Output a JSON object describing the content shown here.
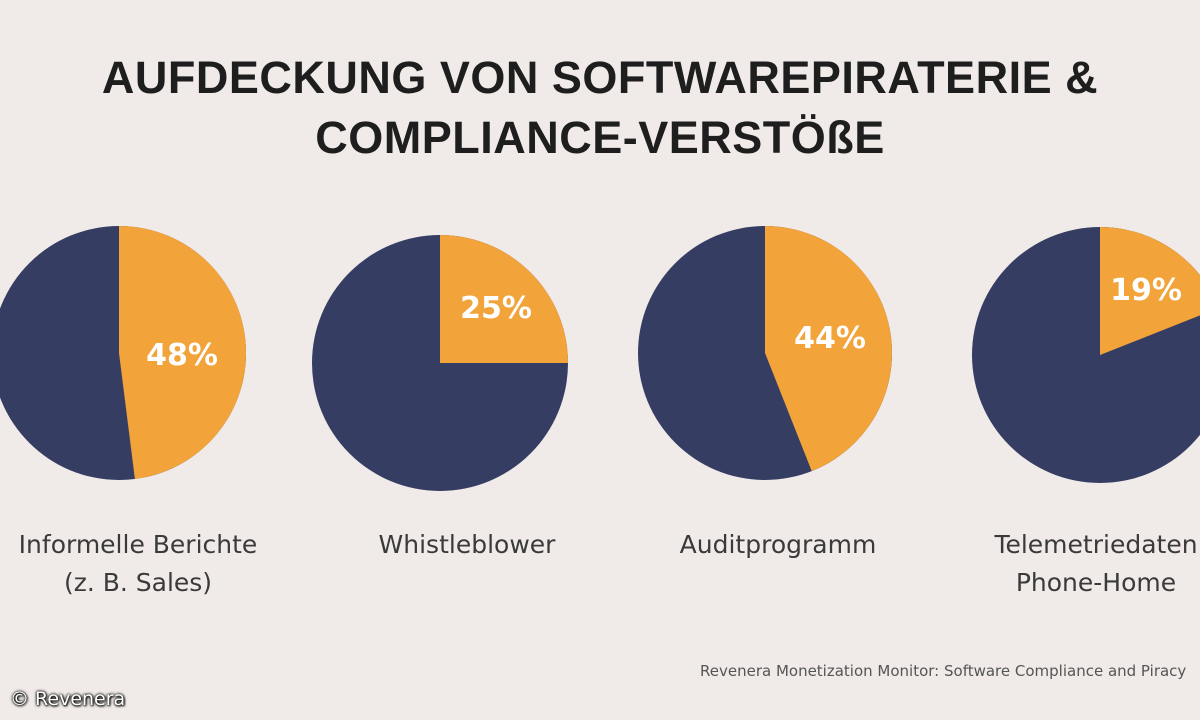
{
  "colors": {
    "background": "#f0ebe8",
    "navy": "#353d63",
    "orange": "#f2a33a",
    "title": "#1e1e1e"
  },
  "chart_data": {
    "type": "pie",
    "title": [
      "AUFDECKUNG VON SOFTWAREPIRATERIE &",
      "COMPLIANCE-VERSTÖßE"
    ],
    "charts": [
      {
        "category": [
          "Informelle Berichte",
          "(z. B. Sales)"
        ],
        "value": 48,
        "label": "48%"
      },
      {
        "category": [
          "Whistleblower"
        ],
        "value": 25,
        "label": "25%"
      },
      {
        "category": [
          "Auditprogramm"
        ],
        "value": 44,
        "label": "44%"
      },
      {
        "category": [
          "Telemetriedaten",
          "Phone-Home"
        ],
        "value": 19,
        "label": "19%"
      }
    ]
  },
  "source": "Revenera Monetization Monitor: Software Compliance and Piracy",
  "copyright": "© Revenera"
}
